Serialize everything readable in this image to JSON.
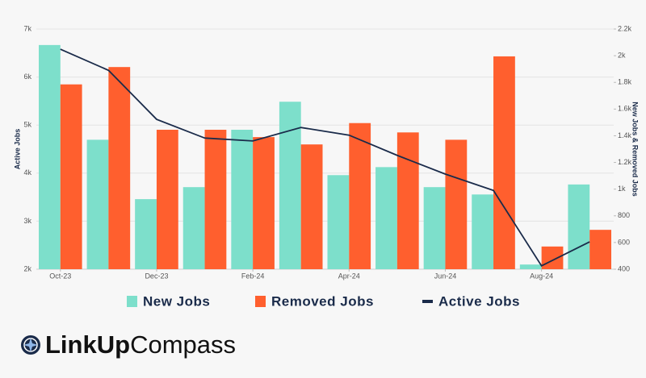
{
  "chart_data": {
    "type": "bar-line",
    "categories": [
      "Oct-23",
      null,
      "Dec-23",
      null,
      "Feb-24",
      null,
      "Apr-24",
      null,
      "Jun-24",
      null,
      "Aug-24",
      null
    ],
    "series": [
      {
        "name": "New Jobs",
        "type": "bar",
        "axis": "y2",
        "color": "#7ddfcb",
        "values": [
          2080,
          1370,
          925,
          1015,
          1445,
          1655,
          1105,
          1165,
          1015,
          960,
          435,
          1035
        ]
      },
      {
        "name": "Removed Jobs",
        "type": "bar",
        "axis": "y2",
        "color": "#ff5f2e",
        "values": [
          1785,
          1915,
          1445,
          1445,
          1390,
          1335,
          1495,
          1425,
          1370,
          1995,
          570,
          695
        ]
      },
      {
        "name": "Active Jobs",
        "type": "line",
        "axis": "y",
        "color": "#1a2b4a",
        "values": [
          6580,
          6140,
          5120,
          4730,
          4670,
          4950,
          4790,
          4370,
          3980,
          3640,
          2070,
          2570
        ]
      }
    ],
    "ylabel": "Active Jobs",
    "y2label": "New Jobs & Removed Jobs",
    "ylim": [
      2000,
      7000
    ],
    "yticks": [
      {
        "value": 2000,
        "label": "2k"
      },
      {
        "value": 3000,
        "label": "3k"
      },
      {
        "value": 4000,
        "label": "4k"
      },
      {
        "value": 5000,
        "label": "5k"
      },
      {
        "value": 6000,
        "label": "6k"
      },
      {
        "value": 7000,
        "label": "7k"
      }
    ],
    "y2lim": [
      400,
      2200
    ],
    "y2ticks": [
      400,
      600,
      800,
      {
        "value": 1000,
        "label": "1k"
      },
      {
        "value": 1200,
        "label": "1.2k"
      },
      {
        "value": 1400,
        "label": "1.4k"
      },
      {
        "value": 1600,
        "label": "1.6k"
      },
      {
        "value": 1800,
        "label": "1.8k"
      },
      {
        "value": 2000,
        "label": "2k"
      },
      {
        "value": 2200,
        "label": "2.2k"
      }
    ],
    "grid": true,
    "legend": "bottom"
  },
  "brand": {
    "name": "LinkUp",
    "product": "Compass"
  }
}
